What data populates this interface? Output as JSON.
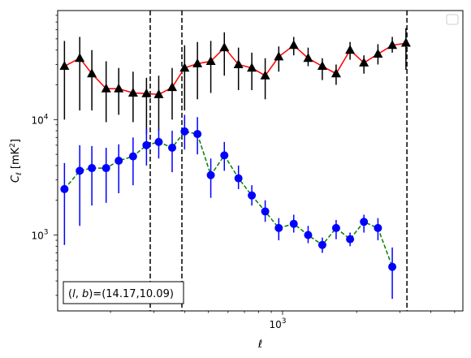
{
  "chart_data": {
    "type": "line",
    "xlabel": "ℓ",
    "ylabel_main": "C",
    "ylabel_sub": "ℓ",
    "ylabel_unit": "[mK",
    "ylabel_unit_sup": "2",
    "ylabel_unit_close": "]",
    "x_scale": "log",
    "y_scale": "log",
    "xlim": [
      122,
      5400
    ],
    "ylim": [
      220,
      88000
    ],
    "x_tick_labels": [
      {
        "value": 1000,
        "base": "10",
        "exp": "3"
      }
    ],
    "y_tick_labels": [
      {
        "value": 1000,
        "base": "10",
        "exp": "3"
      },
      {
        "value": 10000,
        "base": "10",
        "exp": "4"
      }
    ],
    "vlines": [
      290,
      390,
      3200
    ],
    "annotation": {
      "prefix": "(",
      "l": "l",
      "mid": ", ",
      "b": "b",
      "suffix": ")=(14.17,10.09)"
    },
    "legend": "top-right (empty)",
    "series": [
      {
        "color": "#000000",
        "line_color": "#ff0000",
        "line_style": "solid",
        "marker": "triangle",
        "x": [
          130,
          150,
          168,
          192,
          216,
          247,
          280,
          314,
          356,
          400,
          451,
          511,
          580,
          662,
          750,
          850,
          965,
          1110,
          1270,
          1450,
          1650,
          1880,
          2140,
          2440,
          2790,
          3170,
          3620,
          4120,
          4700,
          5300
        ],
        "y": [
          29000,
          34000,
          25000,
          18500,
          18500,
          17000,
          16800,
          16500,
          19000,
          28000,
          30500,
          32000,
          42000,
          30000,
          28000,
          24000,
          35000,
          44000,
          34000,
          29000,
          25000,
          40000,
          31000,
          37000,
          44000,
          46000,
          0,
          0,
          0,
          0
        ],
        "err_low": [
          10000,
          12000,
          12000,
          9500,
          11000,
          9500,
          7500,
          8000,
          10000,
          12000,
          15000,
          17000,
          24000,
          18000,
          18000,
          15000,
          26000,
          36000,
          29000,
          22000,
          20000,
          33000,
          25000,
          30000,
          38000,
          27000,
          0,
          0,
          0,
          0
        ],
        "err_high": [
          48000,
          52000,
          40000,
          32000,
          28000,
          26000,
          23000,
          24000,
          28000,
          44000,
          47000,
          48000,
          57000,
          42000,
          38000,
          34000,
          43000,
          52000,
          42000,
          34000,
          30000,
          47000,
          36000,
          45000,
          52000,
          62000,
          0,
          0,
          0,
          0
        ]
      },
      {
        "color": "#0000ff",
        "line_color": "#008000",
        "line_style": "dashed",
        "marker": "circle",
        "x": [
          130,
          150,
          168,
          192,
          216,
          247,
          280,
          314,
          356,
          400,
          451,
          511,
          580,
          662,
          750,
          850,
          965,
          1110,
          1270,
          1450,
          1650,
          1880,
          2140,
          2440,
          2790,
          3170,
          3620,
          4120,
          4700,
          5300
        ],
        "y": [
          2500,
          3600,
          3800,
          3800,
          4400,
          4800,
          6000,
          6400,
          5700,
          7900,
          7500,
          3300,
          4900,
          3100,
          2200,
          1600,
          1150,
          1250,
          1000,
          820,
          1150,
          920,
          1300,
          1150,
          530,
          0,
          0,
          0,
          0,
          0
        ],
        "err_low": [
          820,
          1200,
          1800,
          1900,
          2300,
          2700,
          4000,
          4600,
          3500,
          5500,
          5000,
          2100,
          3600,
          2500,
          1800,
          1300,
          900,
          1050,
          850,
          700,
          920,
          800,
          1050,
          900,
          280,
          0,
          0,
          0,
          0,
          0
        ],
        "err_high": [
          4200,
          6000,
          5900,
          5700,
          6100,
          7000,
          8400,
          8300,
          8000,
          11000,
          10500,
          4600,
          6400,
          4000,
          2700,
          2000,
          1400,
          1500,
          1200,
          950,
          1350,
          1050,
          1500,
          1400,
          780,
          0,
          0,
          0,
          0,
          0
        ]
      }
    ]
  }
}
